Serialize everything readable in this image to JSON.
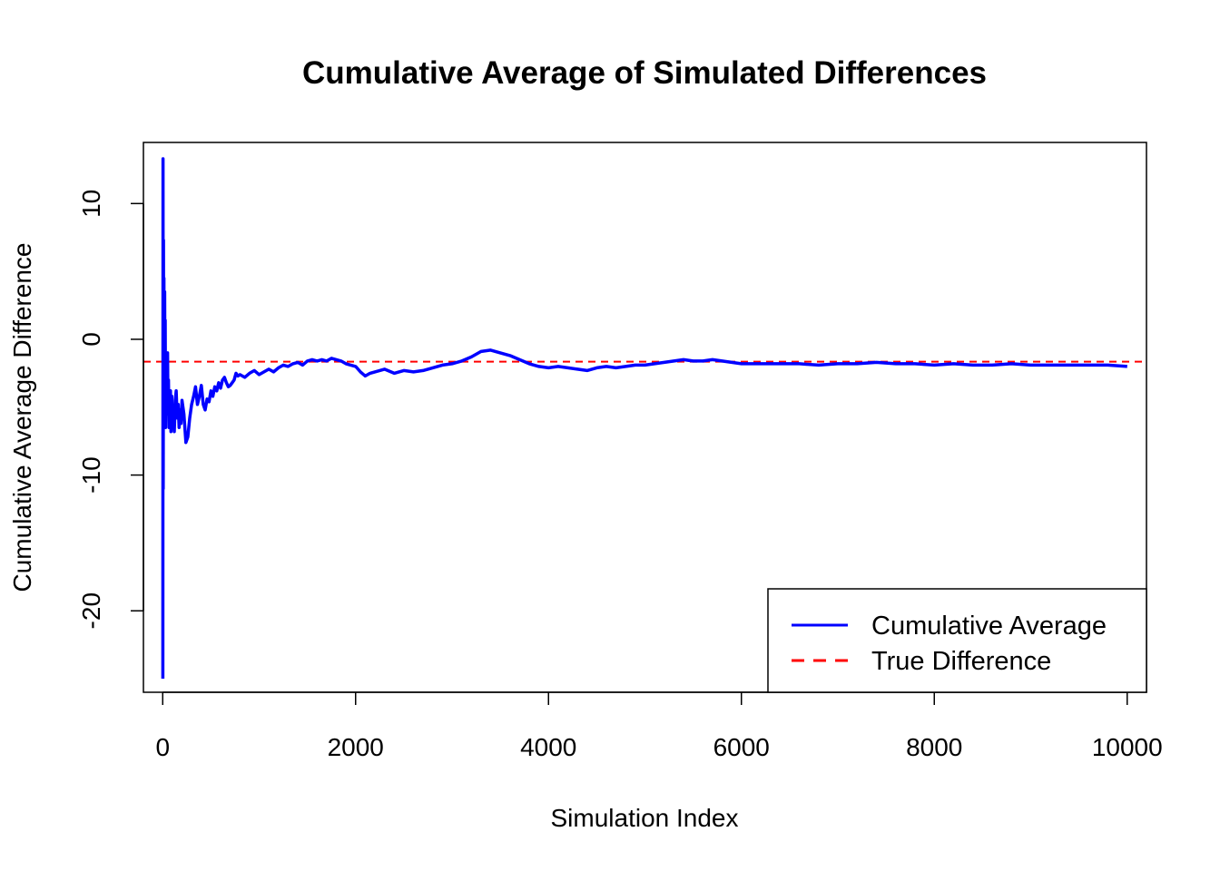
{
  "chart_data": {
    "type": "line",
    "title": "Cumulative Average of Simulated Differences",
    "xlabel": "Simulation Index",
    "ylabel": "Cumulative Average Difference",
    "xlim": [
      -200,
      10200
    ],
    "ylim": [
      -26,
      14.5
    ],
    "x_ticks": [
      0,
      2000,
      4000,
      6000,
      8000,
      10000
    ],
    "x_tick_labels": [
      "0",
      "2000",
      "4000",
      "6000",
      "8000",
      "10000"
    ],
    "y_ticks": [
      -20,
      -10,
      0,
      10
    ],
    "y_tick_labels": [
      "-20",
      "-10",
      "0",
      "10"
    ],
    "grid": false,
    "legend": {
      "position": "bottom-right",
      "entries": [
        {
          "label": "Cumulative Average",
          "color": "#0000ff",
          "style": "solid"
        },
        {
          "label": "True Difference",
          "color": "#ff0000",
          "style": "dashed"
        }
      ]
    },
    "series": [
      {
        "name": "Cumulative Average",
        "color": "#0000ff",
        "style": "solid",
        "x": [
          1,
          3,
          5,
          8,
          10,
          13,
          15,
          18,
          20,
          23,
          26,
          30,
          34,
          38,
          42,
          46,
          50,
          55,
          60,
          65,
          70,
          75,
          80,
          85,
          90,
          95,
          100,
          110,
          120,
          130,
          140,
          150,
          160,
          170,
          180,
          190,
          200,
          220,
          240,
          260,
          280,
          300,
          320,
          340,
          360,
          380,
          400,
          420,
          440,
          460,
          480,
          500,
          520,
          540,
          560,
          580,
          600,
          620,
          640,
          660,
          680,
          700,
          720,
          740,
          760,
          780,
          800,
          850,
          900,
          950,
          1000,
          1050,
          1100,
          1150,
          1200,
          1250,
          1300,
          1350,
          1400,
          1450,
          1500,
          1550,
          1600,
          1650,
          1700,
          1750,
          1800,
          1850,
          1900,
          1950,
          2000,
          2050,
          2100,
          2150,
          2200,
          2300,
          2400,
          2500,
          2600,
          2700,
          2800,
          2900,
          3000,
          3100,
          3200,
          3300,
          3400,
          3500,
          3600,
          3700,
          3800,
          3900,
          4000,
          4100,
          4200,
          4300,
          4400,
          4500,
          4600,
          4700,
          4800,
          4900,
          5000,
          5100,
          5200,
          5300,
          5400,
          5500,
          5600,
          5700,
          5800,
          5900,
          6000,
          6200,
          6400,
          6600,
          6800,
          7000,
          7200,
          7400,
          7600,
          7800,
          8000,
          8200,
          8400,
          8600,
          8800,
          9000,
          9200,
          9400,
          9600,
          9800,
          10000
        ],
        "y": [
          -25,
          13.3,
          -11,
          7.3,
          -4,
          4.5,
          -6,
          1.5,
          3.5,
          -3.5,
          1.4,
          -6.5,
          -1.5,
          -4,
          -2,
          -3.2,
          -1,
          -5.5,
          -3,
          -6.5,
          -4.5,
          -6,
          -3.8,
          -6.8,
          -5.5,
          -4.2,
          -6.2,
          -5.2,
          -6.8,
          -4.5,
          -3.8,
          -5.8,
          -4.8,
          -6.5,
          -5.2,
          -6.2,
          -4.5,
          -5.5,
          -7.6,
          -7.2,
          -5.8,
          -4.8,
          -4.2,
          -3.5,
          -4.8,
          -4.2,
          -3.4,
          -4.8,
          -5.2,
          -4.4,
          -4.6,
          -3.8,
          -4.2,
          -3.5,
          -3.8,
          -3.2,
          -3.6,
          -3,
          -2.8,
          -3.2,
          -3.5,
          -3.4,
          -3.2,
          -3,
          -2.5,
          -2.7,
          -2.6,
          -2.8,
          -2.5,
          -2.3,
          -2.6,
          -2.4,
          -2.2,
          -2.4,
          -2.1,
          -1.9,
          -2,
          -1.8,
          -1.7,
          -1.9,
          -1.6,
          -1.5,
          -1.6,
          -1.5,
          -1.6,
          -1.4,
          -1.5,
          -1.6,
          -1.8,
          -1.9,
          -2,
          -2.4,
          -2.7,
          -2.5,
          -2.4,
          -2.2,
          -2.5,
          -2.3,
          -2.4,
          -2.3,
          -2.1,
          -1.9,
          -1.8,
          -1.6,
          -1.3,
          -0.9,
          -0.8,
          -1.0,
          -1.2,
          -1.5,
          -1.8,
          -2.0,
          -2.1,
          -2.0,
          -2.1,
          -2.2,
          -2.3,
          -2.1,
          -2.0,
          -2.1,
          -2.0,
          -1.9,
          -1.9,
          -1.8,
          -1.7,
          -1.6,
          -1.5,
          -1.6,
          -1.6,
          -1.5,
          -1.6,
          -1.7,
          -1.8,
          -1.8,
          -1.8,
          -1.8,
          -1.9,
          -1.8,
          -1.8,
          -1.7,
          -1.8,
          -1.8,
          -1.9,
          -1.8,
          -1.9,
          -1.9,
          -1.8,
          -1.9,
          -1.9,
          -1.9,
          -1.9,
          -1.9,
          -2.0
        ]
      },
      {
        "name": "True Difference",
        "color": "#ff0000",
        "style": "dashed",
        "y_constant": -1.65
      }
    ]
  }
}
